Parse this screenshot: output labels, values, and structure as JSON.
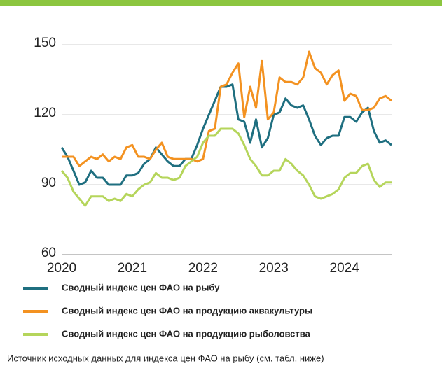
{
  "chart_data": {
    "type": "line",
    "x": [
      2020,
      2020.083,
      2020.167,
      2020.25,
      2020.333,
      2020.417,
      2020.5,
      2020.583,
      2020.667,
      2020.75,
      2020.833,
      2020.917,
      2021,
      2021.083,
      2021.167,
      2021.25,
      2021.333,
      2021.417,
      2021.5,
      2021.583,
      2021.667,
      2021.75,
      2021.833,
      2021.917,
      2022,
      2022.083,
      2022.167,
      2022.25,
      2022.333,
      2022.417,
      2022.5,
      2022.583,
      2022.667,
      2022.75,
      2022.833,
      2022.917,
      2023,
      2023.083,
      2023.167,
      2023.25,
      2023.333,
      2023.417,
      2023.5,
      2023.583,
      2023.667,
      2023.75,
      2023.833,
      2023.917,
      2024,
      2024.083,
      2024.167,
      2024.25,
      2024.333,
      2024.417,
      2024.5,
      2024.583,
      2024.667
    ],
    "series": [
      {
        "name": "Сводный индекс цен ФАО на рыбу",
        "color": "#1f6f80",
        "values": [
          106,
          102,
          96,
          90,
          91,
          96,
          93,
          93,
          90,
          90,
          90,
          94,
          94,
          95,
          99,
          101,
          106,
          103,
          100,
          98,
          98,
          101,
          101,
          107,
          114,
          120,
          126,
          132,
          132,
          133,
          118,
          117,
          108,
          118,
          106,
          110,
          120,
          121,
          127,
          124,
          123,
          124,
          118,
          111,
          107,
          110,
          111,
          111,
          119,
          119,
          117,
          121,
          123,
          113,
          108,
          109,
          107
        ]
      },
      {
        "name": "Сводный индекс цен ФАО на продукцию аквакультуры",
        "color": "#f39221",
        "values": [
          102,
          102,
          102,
          98,
          100,
          102,
          101,
          103,
          100,
          102,
          101,
          106,
          107,
          102,
          102,
          101,
          105,
          108,
          102,
          101,
          101,
          101,
          101,
          100,
          101,
          113,
          114,
          132,
          133,
          138,
          142,
          119,
          132,
          123,
          143,
          118,
          121,
          136,
          134,
          134,
          133,
          136,
          147,
          140,
          138,
          133,
          137,
          139,
          126,
          129,
          128,
          122,
          122,
          123,
          127,
          128,
          126
        ]
      },
      {
        "name": "Сводный индекс цен ФАО на продукцию рыболовства",
        "color": "#b5d55b",
        "values": [
          96,
          93,
          87,
          84,
          81,
          85,
          85,
          85,
          83,
          84,
          83,
          86,
          85,
          88,
          90,
          91,
          95,
          93,
          93,
          92,
          93,
          98,
          100,
          102,
          108,
          111,
          111,
          114,
          114,
          114,
          112,
          107,
          101,
          98,
          94,
          94,
          96,
          96,
          101,
          99,
          96,
          94,
          90,
          85,
          84,
          85,
          86,
          88,
          93,
          95,
          95,
          98,
          99,
          92,
          89,
          91,
          91
        ]
      }
    ],
    "xlim": [
      2020,
      2024.667
    ],
    "xticks": [
      2020,
      2021,
      2022,
      2023,
      2024
    ],
    "ylim": [
      60,
      150
    ],
    "yticks": [
      60,
      90,
      120,
      150
    ],
    "grid": true,
    "source": "Источник исходных данных для индекса цен ФАО на рыбу (см. табл. ниже)"
  }
}
